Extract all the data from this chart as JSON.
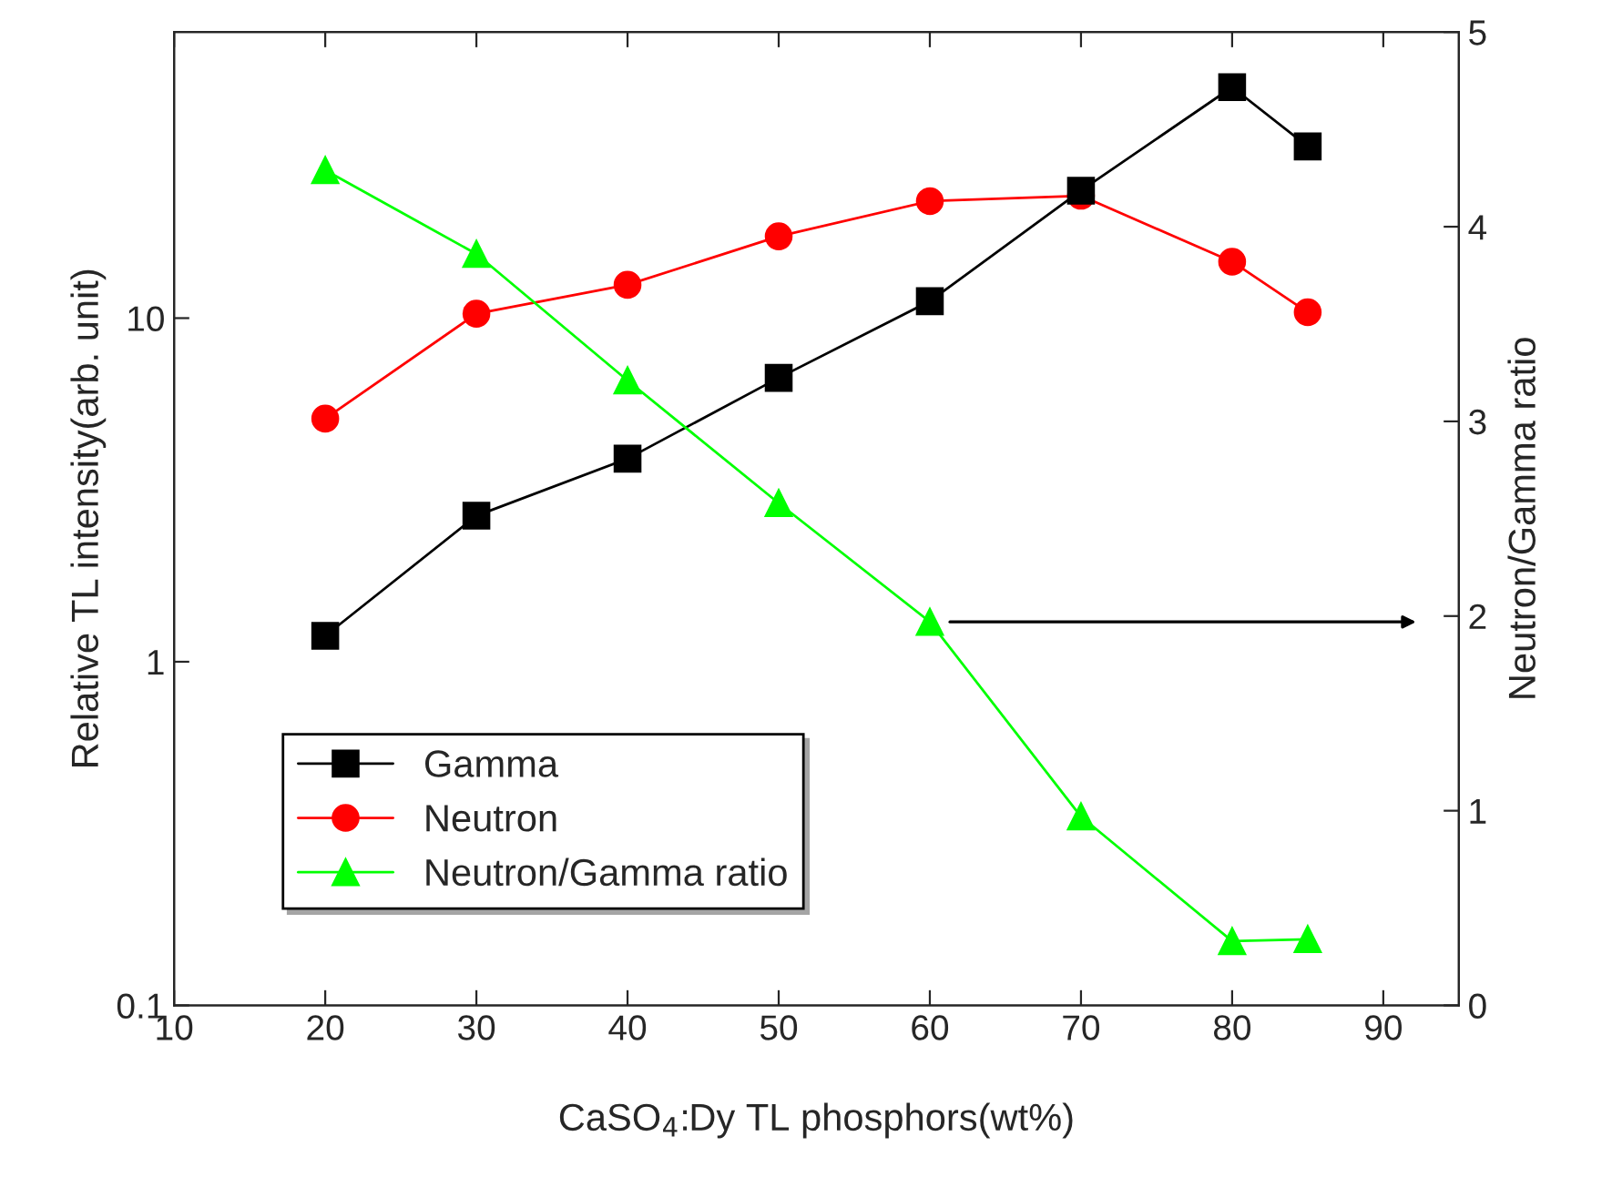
{
  "chart_data": {
    "type": "line",
    "xlabel": "CaSO$_{4}$:Dy TL phosphors(wt%)",
    "ylabel": "Relative TL intensity(arb. unit)",
    "y2label": "Neutron/Gamma ratio",
    "x": [
      20,
      30,
      40,
      50,
      60,
      70,
      80,
      85
    ],
    "series": [
      {
        "name": "Gamma",
        "color": "#000000",
        "marker": "square",
        "values": [
          1.19,
          2.66,
          3.9,
          6.7,
          11.2,
          23.5,
          47,
          31.6
        ]
      },
      {
        "name": "Neutron",
        "color": "#ff0000",
        "marker": "circle",
        "values": [
          5.1,
          10.3,
          12.5,
          17.3,
          21.9,
          22.7,
          14.6,
          10.4
        ]
      },
      {
        "name": "Neutron/Gamma ratio",
        "color": "#00ff00",
        "marker": "triangle",
        "axis": "y2",
        "values": [
          4.29,
          3.86,
          3.21,
          2.58,
          1.97,
          0.97,
          0.33,
          0.34
        ]
      }
    ],
    "log": "y",
    "xlim": [
      10,
      95
    ],
    "xticks": [
      10,
      20,
      30,
      40,
      50,
      60,
      70,
      80,
      90
    ],
    "ylim": [
      0.1,
      68
    ],
    "yticks": [
      0.1,
      1,
      10
    ],
    "y2lim": [
      0,
      5
    ],
    "y2ticks": [
      0,
      1,
      2,
      3,
      4,
      5
    ],
    "legend": "bottom left",
    "grid": false
  }
}
